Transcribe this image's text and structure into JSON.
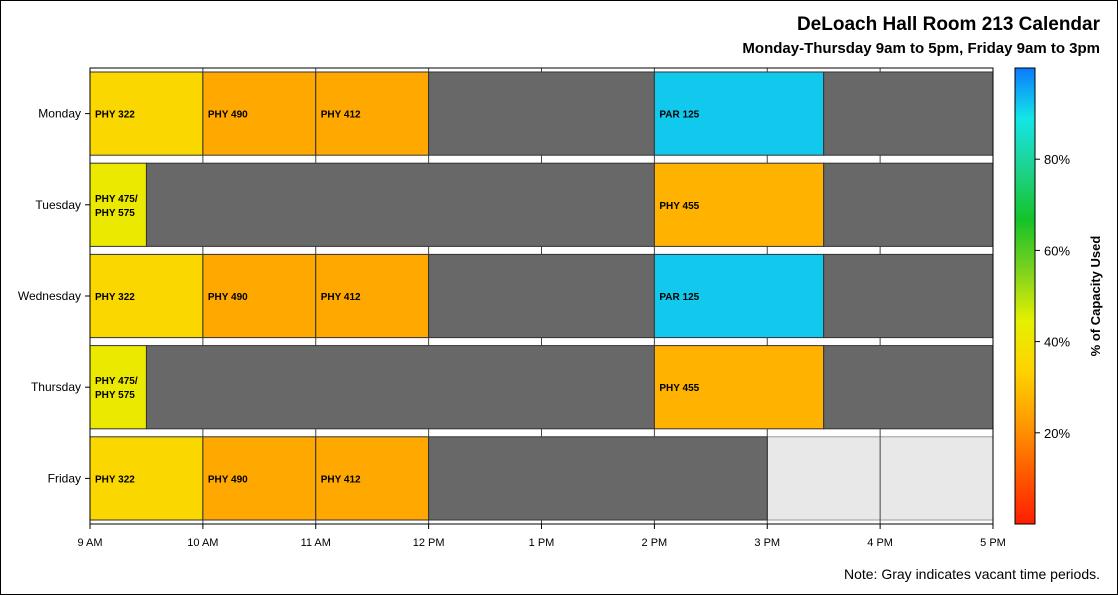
{
  "header": {
    "title": "DeLoach Hall Room 213 Calendar",
    "subtitle": "Monday-Thursday 9am to 5pm, Friday 9am to 3pm"
  },
  "footer": {
    "note": "Note: Gray indicates vacant time periods."
  },
  "chart_data": {
    "type": "gantt",
    "x_unit": "hour of day",
    "xlim": [
      9,
      17
    ],
    "x_ticks": [
      {
        "value": 9,
        "label": "9 AM"
      },
      {
        "value": 10,
        "label": "10 AM"
      },
      {
        "value": 11,
        "label": "11 AM"
      },
      {
        "value": 12,
        "label": "12 PM"
      },
      {
        "value": 13,
        "label": "1 PM"
      },
      {
        "value": 14,
        "label": "2 PM"
      },
      {
        "value": 15,
        "label": "3 PM"
      },
      {
        "value": 16,
        "label": "4 PM"
      },
      {
        "value": 17,
        "label": "5 PM"
      }
    ],
    "grid": true,
    "days": [
      {
        "day": "Monday",
        "open_until": 17,
        "bookings": [
          {
            "label": "PHY 322",
            "start": 9,
            "end": 10,
            "capacity_pct": 35
          },
          {
            "label": "PHY 490",
            "start": 10,
            "end": 11,
            "capacity_pct": 25
          },
          {
            "label": "PHY 412",
            "start": 11,
            "end": 12,
            "capacity_pct": 25
          },
          {
            "label": "",
            "start": 12,
            "end": 14,
            "capacity_pct": null
          },
          {
            "label": "PAR 125",
            "start": 14,
            "end": 15.5,
            "capacity_pct": 92
          },
          {
            "label": "",
            "start": 15.5,
            "end": 17,
            "capacity_pct": null
          }
        ]
      },
      {
        "day": "Tuesday",
        "open_until": 17,
        "bookings": [
          {
            "label": "PHY 475/ PHY 575",
            "start": 9,
            "end": 9.5,
            "capacity_pct": 42
          },
          {
            "label": "",
            "start": 9.5,
            "end": 14,
            "capacity_pct": null
          },
          {
            "label": "PHY 455",
            "start": 14,
            "end": 15.5,
            "capacity_pct": 27
          },
          {
            "label": "",
            "start": 15.5,
            "end": 17,
            "capacity_pct": null
          }
        ]
      },
      {
        "day": "Wednesday",
        "open_until": 17,
        "bookings": [
          {
            "label": "PHY 322",
            "start": 9,
            "end": 10,
            "capacity_pct": 35
          },
          {
            "label": "PHY 490",
            "start": 10,
            "end": 11,
            "capacity_pct": 25
          },
          {
            "label": "PHY 412",
            "start": 11,
            "end": 12,
            "capacity_pct": 25
          },
          {
            "label": "",
            "start": 12,
            "end": 14,
            "capacity_pct": null
          },
          {
            "label": "PAR 125",
            "start": 14,
            "end": 15.5,
            "capacity_pct": 92
          },
          {
            "label": "",
            "start": 15.5,
            "end": 17,
            "capacity_pct": null
          }
        ]
      },
      {
        "day": "Thursday",
        "open_until": 17,
        "bookings": [
          {
            "label": "PHY 475/ PHY 575",
            "start": 9,
            "end": 9.5,
            "capacity_pct": 42
          },
          {
            "label": "",
            "start": 9.5,
            "end": 14,
            "capacity_pct": null
          },
          {
            "label": "PHY 455",
            "start": 14,
            "end": 15.5,
            "capacity_pct": 27
          },
          {
            "label": "",
            "start": 15.5,
            "end": 17,
            "capacity_pct": null
          }
        ]
      },
      {
        "day": "Friday",
        "open_until": 15,
        "bookings": [
          {
            "label": "PHY 322",
            "start": 9,
            "end": 10,
            "capacity_pct": 35
          },
          {
            "label": "PHY 490",
            "start": 10,
            "end": 11,
            "capacity_pct": 25
          },
          {
            "label": "PHY 412",
            "start": 11,
            "end": 12,
            "capacity_pct": 25
          },
          {
            "label": "",
            "start": 12,
            "end": 15,
            "capacity_pct": null
          }
        ]
      }
    ],
    "colorbar": {
      "label": "% of Capacity Used",
      "range": [
        0,
        100
      ],
      "ticks": [
        {
          "value": 20,
          "label": "20%"
        },
        {
          "value": 40,
          "label": "40%"
        },
        {
          "value": 60,
          "label": "60%"
        },
        {
          "value": 80,
          "label": "80%"
        }
      ],
      "stops": [
        "#ff1e00",
        "#ff5a00",
        "#ff9a00",
        "#ffd200",
        "#e6f000",
        "#7ed21e",
        "#14c328",
        "#1ed28c",
        "#14e6e6",
        "#0a7aff"
      ]
    },
    "colors": {
      "vacant": "#686868",
      "closed": "#e8e8e8",
      "row_bg": "#eeeeee"
    }
  }
}
